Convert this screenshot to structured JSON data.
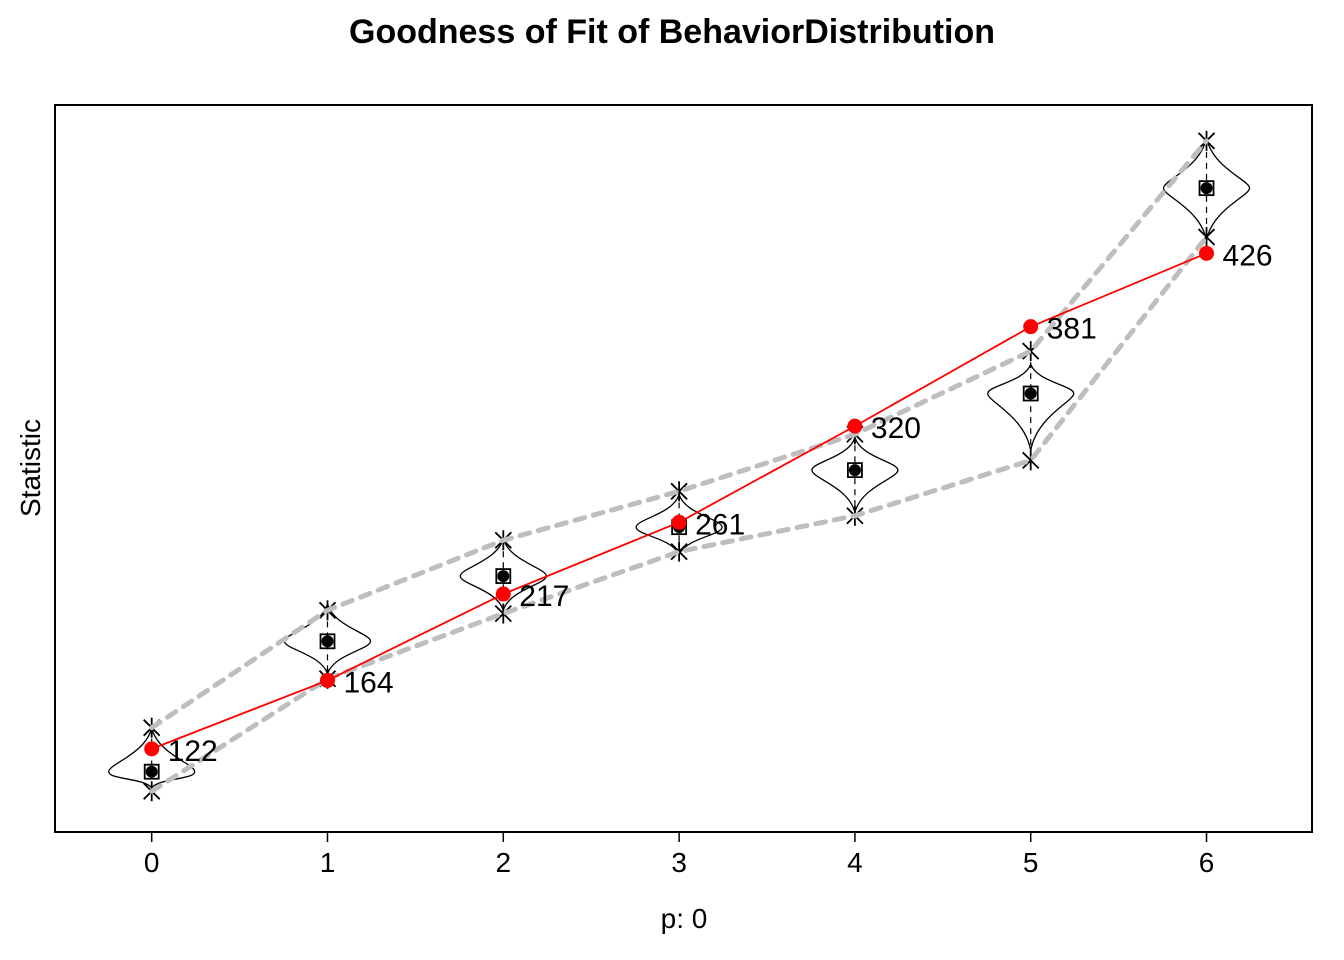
{
  "chart_data": {
    "type": "line",
    "title": "Goodness of Fit of BehaviorDistribution",
    "xlabel": "p: 0",
    "ylabel": "Statistic",
    "x": [
      0,
      1,
      2,
      3,
      4,
      5,
      6
    ],
    "observed": {
      "color": "#ff0000",
      "values": [
        122,
        164,
        217,
        261,
        320,
        381,
        426
      ]
    },
    "observed_labels": [
      "122",
      "164",
      "217",
      "261",
      "320",
      "381",
      "426"
    ],
    "simulated": {
      "median": [
        108,
        188,
        228,
        258,
        293,
        340,
        466
      ],
      "band_upper": [
        135,
        207,
        250,
        280,
        315,
        366,
        495
      ],
      "band_lower": [
        96,
        165,
        205,
        243,
        265,
        299,
        436
      ],
      "violin_max": [
        135,
        211,
        251,
        278,
        313,
        358,
        497
      ],
      "violin_min": [
        98,
        168,
        207,
        241,
        267,
        305,
        434
      ]
    },
    "band_color": "#bebebe",
    "ylim": [
      71,
      517
    ],
    "xlim": [
      -0.55,
      6.6
    ],
    "grid": false,
    "legend": "none"
  }
}
